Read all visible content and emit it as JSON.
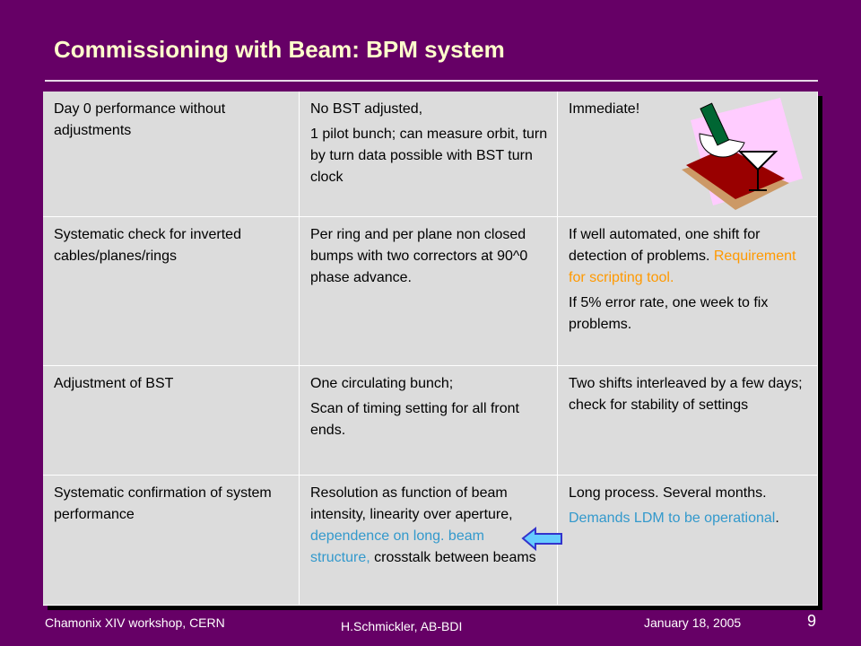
{
  "header": {
    "title": "Commissioning with Beam: BPM system"
  },
  "table": {
    "rows": [
      [
        [
          [
            {
              "text": "Day 0 performance without adjustments"
            }
          ]
        ],
        [
          [
            {
              "text": "No BST adjusted,"
            }
          ],
          [
            {
              "text": "1 pilot bunch; can measure orbit, turn by turn data possible with BST turn clock"
            }
          ]
        ],
        [
          [
            {
              "text": "Immediate!"
            }
          ]
        ]
      ],
      [
        [
          [
            {
              "text": "Systematic check for inverted cables/planes/rings"
            }
          ]
        ],
        [
          [
            {
              "text": "Per ring and per plane non closed bumps with two correctors at 90^0 phase advance."
            }
          ]
        ],
        [
          [
            {
              "text": "If well automated, one shift for detection of problems. "
            },
            {
              "text": "Requirement for scripting tool.",
              "color": "#ff9900"
            }
          ],
          [
            {
              "text": "If 5% error rate, one week to fix problems."
            }
          ]
        ]
      ],
      [
        [
          [
            {
              "text": "Adjustment of BST"
            }
          ]
        ],
        [
          [
            {
              "text": "One circulating bunch;"
            }
          ],
          [
            {
              "text": "Scan of timing setting for all front ends."
            }
          ]
        ],
        [
          [
            {
              "text": "Two shifts interleaved by a few days; check for stability of settings"
            }
          ]
        ]
      ],
      [
        [
          [
            {
              "text": "Systematic confirmation of system performance"
            }
          ]
        ],
        [
          [
            {
              "text": "Resolution as function of beam intensity, linearity over aperture, "
            },
            {
              "text": "dependence on long. beam structure,",
              "color": "#3399cc"
            },
            {
              "text": " crosstalk between beams"
            }
          ]
        ],
        [
          [
            {
              "text": "Long process. Several months."
            }
          ],
          [
            {
              "text": "Demands LDM to be operational",
              "color": "#3399cc"
            },
            {
              "text": "."
            }
          ]
        ]
      ]
    ]
  },
  "footer": {
    "left": "Chamonix XIV workshop, CERN",
    "center": "H.Schmickler, AB-BDI",
    "right": "January 18, 2005",
    "page": "9"
  }
}
